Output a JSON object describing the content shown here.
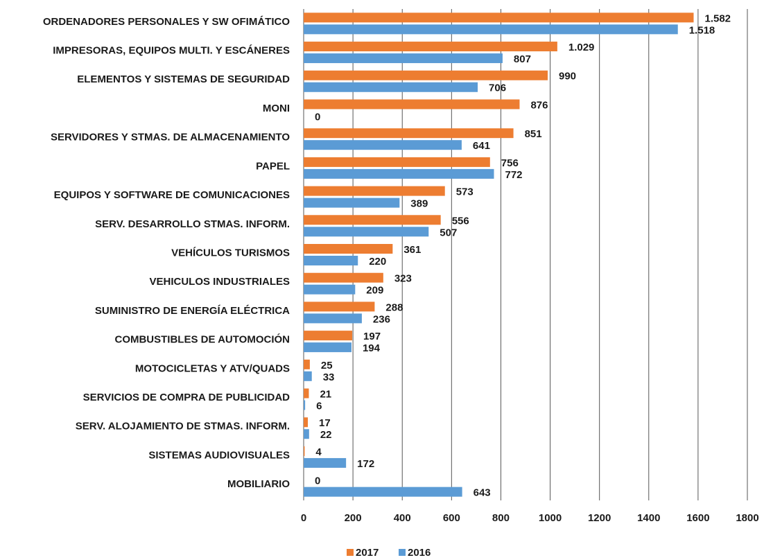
{
  "chart_data": {
    "type": "hbar",
    "categories": [
      "ORDENADORES PERSONALES Y SW OFIMÁTICO",
      "IMPRESORAS, EQUIPOS MULTI. Y ESCÁNERES",
      "ELEMENTOS Y SISTEMAS DE SEGURIDAD",
      "MONI",
      "SERVIDORES Y STMAS. DE ALMACENAMIENTO",
      "PAPEL",
      "EQUIPOS Y SOFTWARE DE COMUNICACIONES",
      "SERV. DESARROLLO STMAS. INFORM.",
      "VEHÍCULOS TURISMOS",
      "VEHICULOS INDUSTRIALES",
      "SUMINISTRO DE ENERGÍA ELÉCTRICA",
      "COMBUSTIBLES DE AUTOMOCIÓN",
      "MOTOCICLETAS Y ATV/QUADS",
      "SERVICIOS DE COMPRA DE PUBLICIDAD",
      "SERV. ALOJAMIENTO DE STMAS. INFORM.",
      "SISTEMAS AUDIOVISUALES",
      "MOBILIARIO"
    ],
    "series": [
      {
        "name": "2017",
        "color": "#ed7d31",
        "values": [
          1582,
          1029,
          990,
          876,
          851,
          756,
          573,
          556,
          361,
          323,
          288,
          197,
          25,
          21,
          17,
          4,
          0
        ],
        "value_labels": [
          "1.582",
          "1.029",
          "990",
          "876",
          "851",
          "756",
          "573",
          "556",
          "361",
          "323",
          "288",
          "197",
          "25",
          "21",
          "17",
          "4",
          "0"
        ]
      },
      {
        "name": "2016",
        "color": "#5b9bd5",
        "values": [
          1518,
          807,
          706,
          0,
          641,
          772,
          389,
          507,
          220,
          209,
          236,
          194,
          33,
          6,
          22,
          172,
          643
        ],
        "value_labels": [
          "1.518",
          "807",
          "706",
          "0",
          "641",
          "772",
          "389",
          "507",
          "220",
          "209",
          "236",
          "194",
          "33",
          "6",
          "22",
          "172",
          "643"
        ]
      }
    ],
    "xlim": [
      0,
      1800
    ],
    "xticks": [
      0,
      200,
      400,
      600,
      800,
      1000,
      1200,
      1400,
      1600,
      1800
    ],
    "grid": true,
    "legend": "bottom"
  }
}
